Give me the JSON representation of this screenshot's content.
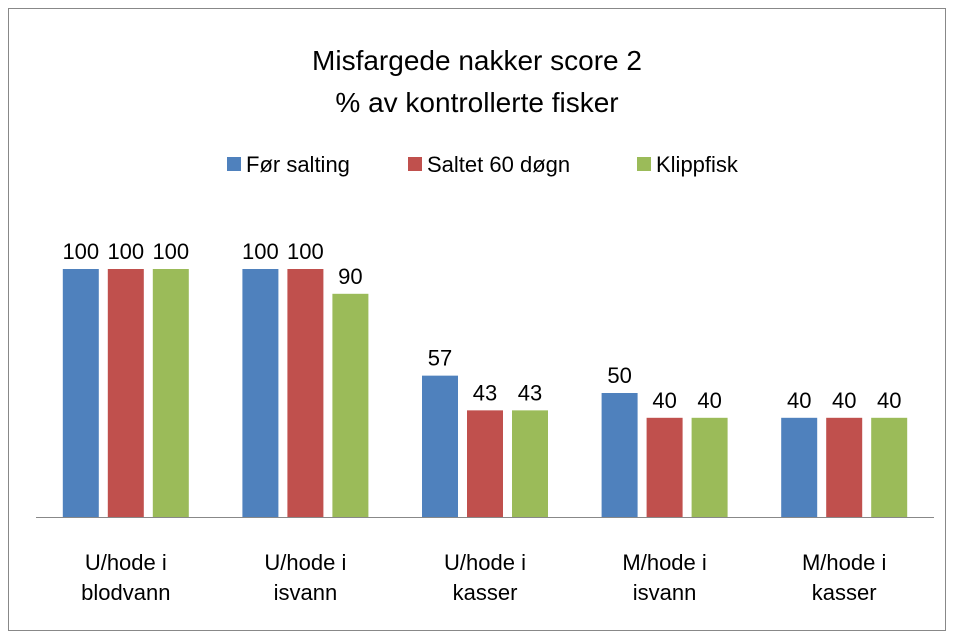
{
  "chart_data": {
    "type": "bar",
    "title": "Misfargede nakker score 2",
    "subtitle": "% av kontrollerte fisker",
    "categories": [
      "U/hode i blodvann",
      "U/hode i isvann",
      "U/hode i kasser",
      "M/hode i isvann",
      "M/hode i kasser"
    ],
    "series": [
      {
        "name": "Før salting",
        "color": "#4f81bd",
        "values": [
          100,
          100,
          57,
          50,
          40
        ]
      },
      {
        "name": "Saltet 60 døgn",
        "color": "#c0504d",
        "values": [
          100,
          100,
          43,
          40,
          40
        ]
      },
      {
        "name": "Klippfisk",
        "color": "#9bbb59",
        "values": [
          100,
          90,
          43,
          40,
          40
        ]
      }
    ],
    "ylim": [
      0,
      100
    ],
    "legend": "top"
  }
}
